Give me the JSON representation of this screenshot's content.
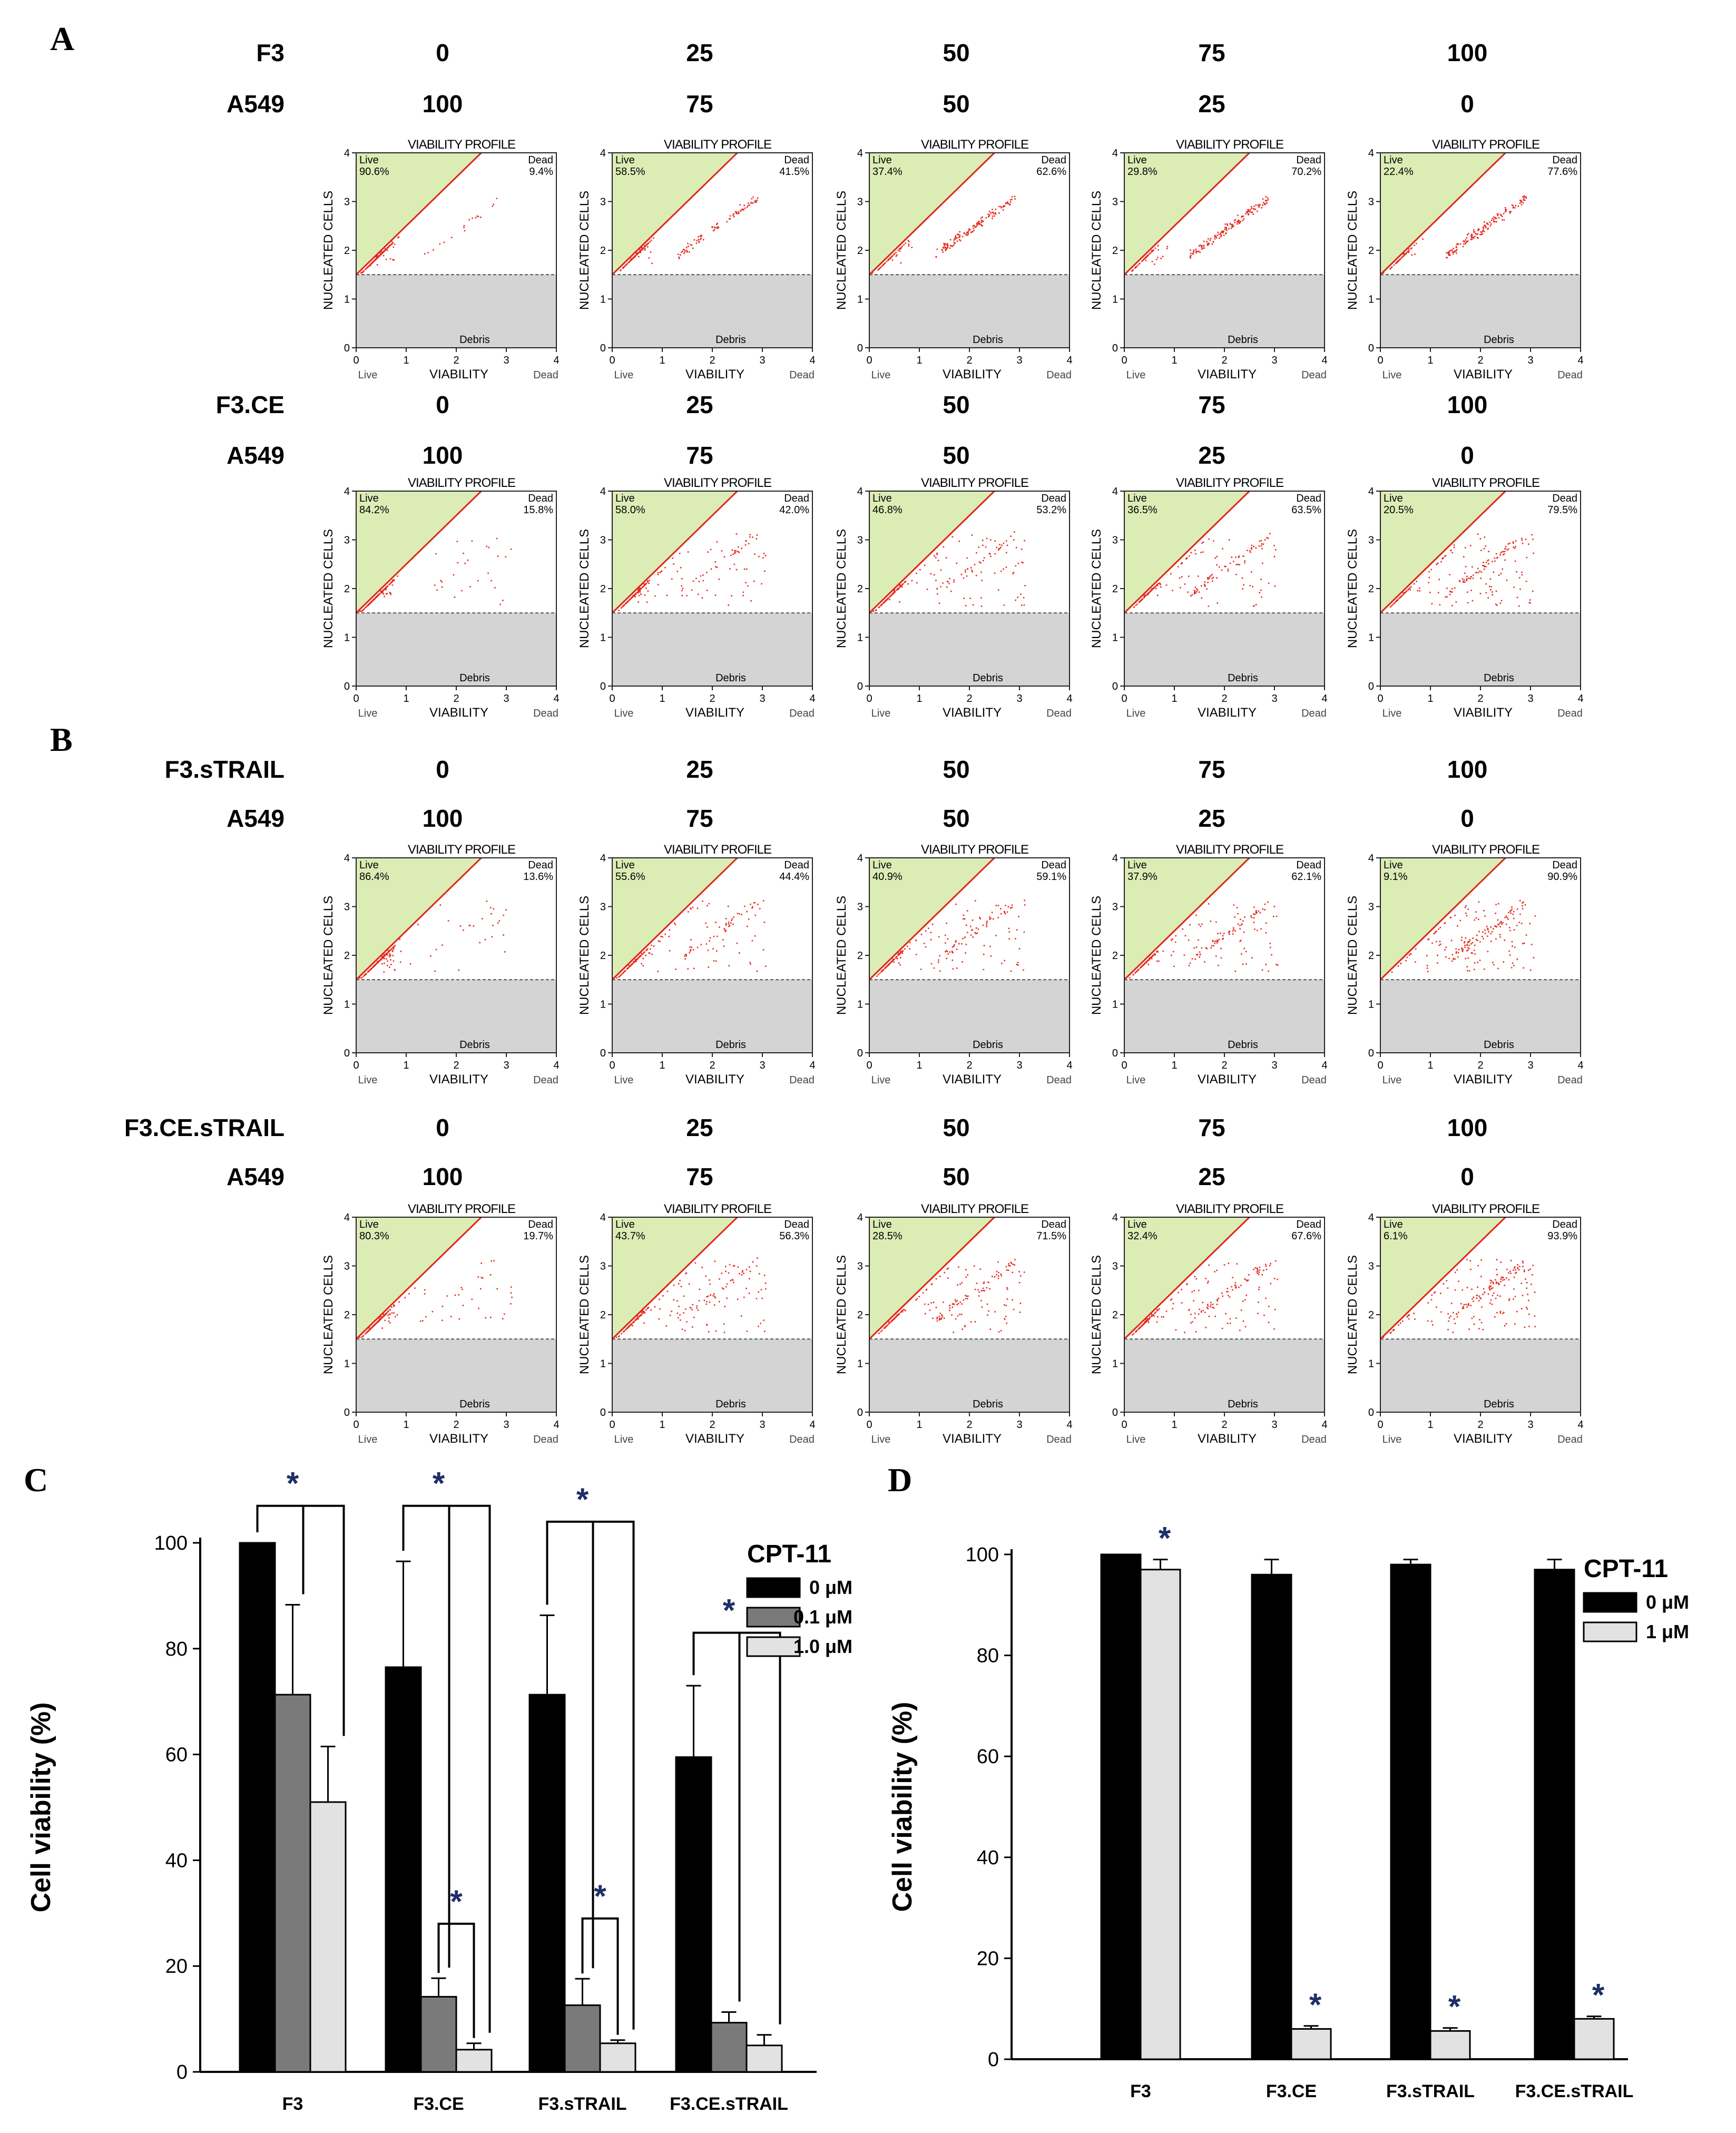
{
  "panels": {
    "A": "A",
    "B": "B",
    "C": "C",
    "D": "D"
  },
  "flow": {
    "plot_title": "VIABILITY PROFILE",
    "ylabel": "NUCLEATED CELLS",
    "xlabel": "VIABILITY",
    "left_x_note": "Live",
    "right_x_note": "Dead",
    "live_label": "Live",
    "dead_label": "Dead",
    "debris_label": "Debris",
    "ticks": [
      "0",
      "1",
      "2",
      "3",
      "4"
    ],
    "rows": [
      {
        "panel": "A",
        "effector": "F3",
        "target": "A549",
        "effector_values": [
          "0",
          "25",
          "50",
          "75",
          "100"
        ],
        "target_values": [
          "100",
          "75",
          "50",
          "25",
          "0"
        ],
        "live": [
          "90.6%",
          "58.5%",
          "37.4%",
          "29.8%",
          "22.4%"
        ],
        "dead": [
          "9.4%",
          "41.5%",
          "62.6%",
          "70.2%",
          "77.6%"
        ]
      },
      {
        "panel": "A",
        "effector": "F3.CE",
        "target": "A549",
        "effector_values": [
          "0",
          "25",
          "50",
          "75",
          "100"
        ],
        "target_values": [
          "100",
          "75",
          "50",
          "25",
          "0"
        ],
        "live": [
          "84.2%",
          "58.0%",
          "46.8%",
          "36.5%",
          "20.5%"
        ],
        "dead": [
          "15.8%",
          "42.0%",
          "53.2%",
          "63.5%",
          "79.5%"
        ]
      },
      {
        "panel": "B",
        "effector": "F3.sTRAIL",
        "target": "A549",
        "effector_values": [
          "0",
          "25",
          "50",
          "75",
          "100"
        ],
        "target_values": [
          "100",
          "75",
          "50",
          "25",
          "0"
        ],
        "live": [
          "86.4%",
          "55.6%",
          "40.9%",
          "37.9%",
          "9.1%"
        ],
        "dead": [
          "13.6%",
          "44.4%",
          "59.1%",
          "62.1%",
          "90.9%"
        ]
      },
      {
        "panel": "B",
        "effector": "F3.CE.sTRAIL",
        "target": "A549",
        "effector_values": [
          "0",
          "25",
          "50",
          "75",
          "100"
        ],
        "target_values": [
          "100",
          "75",
          "50",
          "25",
          "0"
        ],
        "live": [
          "80.3%",
          "43.7%",
          "28.5%",
          "32.4%",
          "6.1%"
        ],
        "dead": [
          "19.7%",
          "56.3%",
          "71.5%",
          "67.6%",
          "93.9%"
        ]
      }
    ]
  },
  "chart_data": [
    {
      "type": "bar",
      "panel": "C",
      "title": "",
      "xlabel": "",
      "ylabel": "Cell viability (%)",
      "ylim": [
        0,
        100
      ],
      "yticks": [
        "0",
        "20",
        "40",
        "60",
        "80",
        "100"
      ],
      "categories": [
        "F3",
        "F3.CE",
        "F3.sTRAIL",
        "F3.CE.sTRAIL"
      ],
      "legend_title": "CPT-11",
      "series": [
        {
          "name": "0 μM",
          "values": [
            100,
            76.5,
            71.3,
            59.5
          ],
          "errors": [
            0,
            20,
            15,
            13.5
          ]
        },
        {
          "name": "0.1 μM",
          "values": [
            71.3,
            14.2,
            12.6,
            9.3
          ],
          "errors": [
            17,
            3.5,
            5,
            2
          ]
        },
        {
          "name": "1.0 μM",
          "values": [
            51,
            4.2,
            5.4,
            5
          ],
          "errors": [
            10.5,
            1.2,
            0.6,
            2
          ]
        }
      ],
      "significance": "*",
      "colors": [
        "#000000",
        "#7a7a7a",
        "#e2e2e2"
      ]
    },
    {
      "type": "bar",
      "panel": "D",
      "title": "",
      "xlabel": "",
      "ylabel": "Cell viability (%)",
      "ylim": [
        0,
        100
      ],
      "yticks": [
        "0",
        "20",
        "40",
        "60",
        "80",
        "100"
      ],
      "categories": [
        "F3",
        "F3.CE",
        "F3.sTRAIL",
        "F3.CE.sTRAIL"
      ],
      "legend_title": "CPT-11",
      "series": [
        {
          "name": "0 μM",
          "values": [
            100,
            96,
            98,
            97
          ],
          "errors": [
            0,
            3,
            1,
            2
          ]
        },
        {
          "name": "1 μM",
          "values": [
            97,
            6,
            5.6,
            8
          ],
          "errors": [
            2,
            0.6,
            0.6,
            0.5
          ]
        }
      ],
      "significance": "*",
      "colors": [
        "#000000",
        "#e2e2e2"
      ]
    }
  ]
}
